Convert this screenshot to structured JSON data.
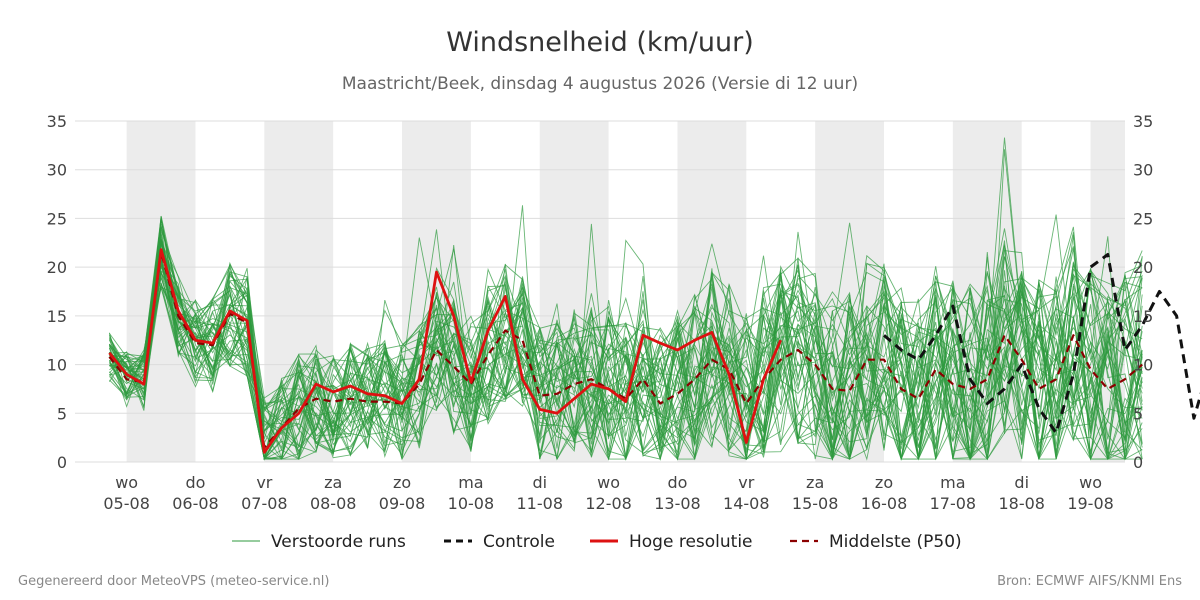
{
  "header": {
    "title": "Windsnelheid (km/uur)",
    "subtitle": "Maastricht/Beek, dinsdag  4 augustus 2026 (Versie di 12 uur)"
  },
  "footer": {
    "left": "Gegenereerd door MeteoVPS (meteo-service.nl)",
    "right": "Bron: ECMWF AIFS/KNMI Ens"
  },
  "colors": {
    "ensemble": "#2e9a3e",
    "control": "#111111",
    "high_resolution": "#dd1111",
    "median": "#8b0000",
    "shading": "#ececec",
    "grid": "#dddddd"
  },
  "chart_data": {
    "type": "line",
    "ylim": [
      0,
      35
    ],
    "y_ticks": [
      "0",
      "5",
      "10",
      "15",
      "20",
      "25",
      "30",
      "35"
    ],
    "x_range": [
      -0.75,
      14.5
    ],
    "x_ticks": [
      {
        "day": "wo",
        "date": "05-08"
      },
      {
        "day": "do",
        "date": "06-08"
      },
      {
        "day": "vr",
        "date": "07-08"
      },
      {
        "day": "za",
        "date": "08-08"
      },
      {
        "day": "zo",
        "date": "09-08"
      },
      {
        "day": "ma",
        "date": "10-08"
      },
      {
        "day": "di",
        "date": "11-08"
      },
      {
        "day": "wo",
        "date": "12-08"
      },
      {
        "day": "do",
        "date": "13-08"
      },
      {
        "day": "vr",
        "date": "14-08"
      },
      {
        "day": "za",
        "date": "15-08"
      },
      {
        "day": "zo",
        "date": "16-08"
      },
      {
        "day": "ma",
        "date": "17-08"
      },
      {
        "day": "di",
        "date": "18-08"
      },
      {
        "day": "wo",
        "date": "19-08"
      }
    ],
    "shaded_days": [
      "05-08",
      "07-08",
      "09-08",
      "11-08",
      "13-08",
      "15-08",
      "17-08",
      "19-08"
    ],
    "x_step_days": 0.25,
    "x_start": -0.25,
    "grid": true,
    "legend_position": "bottom",
    "series": [
      {
        "name": "Controle",
        "style": "dashed",
        "color": "#111111",
        "start_index": 45,
        "values": [
          13.0,
          11.5,
          10.5,
          13.0,
          16.0,
          8.5,
          6.0,
          7.5,
          10.0,
          5.5,
          3.0,
          9.0,
          20.0,
          21.3,
          11.5,
          14.0,
          17.5,
          15.0,
          4.5,
          10.5,
          12.8
        ]
      },
      {
        "name": "Hoge resolutie",
        "style": "solid",
        "color": "#dd1111",
        "start_index": 0,
        "values": [
          11.2,
          9.0,
          8.0,
          21.8,
          15.5,
          12.5,
          12.2,
          15.5,
          14.5,
          1.0,
          3.5,
          5.0,
          8.0,
          7.2,
          7.8,
          7.0,
          6.8,
          6.0,
          8.5,
          19.5,
          15.0,
          8.2,
          13.5,
          17.0,
          8.5,
          5.4,
          5.0,
          6.5,
          8.0,
          7.5,
          6.2,
          13.0,
          12.2,
          11.5,
          12.5,
          13.3,
          9.0,
          2.0,
          8.5,
          12.5
        ]
      },
      {
        "name": "Middelste (P50)",
        "style": "dashed",
        "color": "#8b0000",
        "start_index": 0,
        "values": [
          10.8,
          8.5,
          8.2,
          21.5,
          15.0,
          12.2,
          12.0,
          15.2,
          14.3,
          1.5,
          3.5,
          5.5,
          6.5,
          6.2,
          6.5,
          6.2,
          6.2,
          6.0,
          8.0,
          11.5,
          9.8,
          8.0,
          11.0,
          13.5,
          12.5,
          6.8,
          7.0,
          8.0,
          8.5,
          7.5,
          6.5,
          8.5,
          6.0,
          7.0,
          8.5,
          10.5,
          9.5,
          6.0,
          8.5,
          10.5,
          11.5,
          10.0,
          7.5,
          7.3,
          10.5,
          10.5,
          7.5,
          6.5,
          9.5,
          8.0,
          7.5,
          8.5,
          13.0,
          10.5,
          7.5,
          8.5,
          13.0,
          9.5,
          7.5,
          8.5,
          10.0
        ]
      }
    ],
    "ensemble": {
      "name": "Verstoorde runs",
      "members": 50,
      "points": 61
    }
  },
  "legend": [
    {
      "label": "Verstoorde runs",
      "style": "thin",
      "color": "#2e9a3e"
    },
    {
      "label": "Controle",
      "style": "dashed",
      "color": "#111111"
    },
    {
      "label": "Hoge resolutie",
      "style": "solid",
      "color": "#dd1111"
    },
    {
      "label": "Middelste (P50)",
      "style": "dashed",
      "color": "#8b0000"
    }
  ]
}
